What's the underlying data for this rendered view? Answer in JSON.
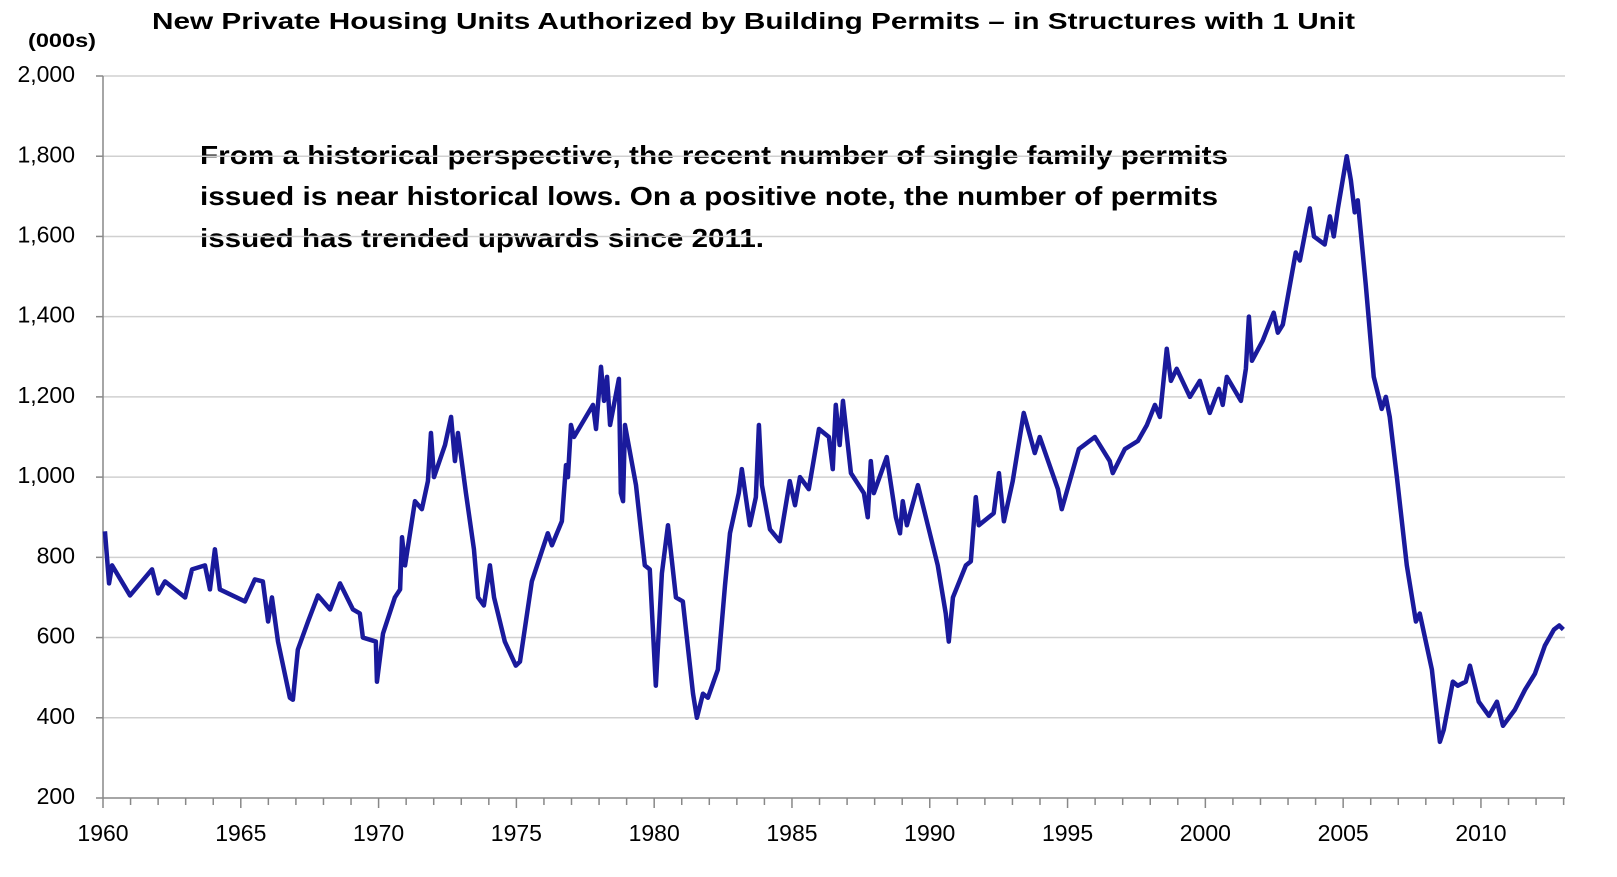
{
  "chart_data": {
    "type": "line",
    "title": "New Private Housing Units Authorized by Building Permits – in Structures with 1 Unit",
    "y_axis_label": "(000s)",
    "annotation": [
      "From a historical perspective, the recent number of single family permits",
      "issued is near historical lows. On a positive note, the number of permits",
      "issued has trended upwards since 2011."
    ],
    "xlim": [
      1960,
      2013.05
    ],
    "xticks": [
      1960,
      1965,
      1970,
      1975,
      1980,
      1985,
      1990,
      1995,
      2000,
      2005,
      2010
    ],
    "xminorticks": [
      1961,
      1962,
      1963,
      1964,
      1966,
      1967,
      1968,
      1969,
      1971,
      1972,
      1973,
      1974,
      1976,
      1977,
      1978,
      1979,
      1981,
      1982,
      1983,
      1984,
      1986,
      1987,
      1988,
      1989,
      1991,
      1992,
      1993,
      1994,
      1996,
      1997,
      1998,
      1999,
      2001,
      2002,
      2003,
      2004,
      2006,
      2007,
      2008,
      2009,
      2011,
      2012,
      2013
    ],
    "ylim": [
      200,
      2000
    ],
    "yticks": [
      200,
      400,
      600,
      800,
      {
        "value": 1000,
        "label": "1,000"
      },
      {
        "value": 1200,
        "label": "1,200"
      },
      {
        "value": 1400,
        "label": "1,400"
      },
      {
        "value": 1600,
        "label": "1,600"
      },
      {
        "value": 1800,
        "label": "1,800"
      },
      {
        "value": 2000,
        "label": "2,000"
      }
    ],
    "grid": true,
    "series": [
      {
        "color": "#1a1a9c",
        "x": [
          1960.07,
          1960.22,
          1960.33,
          1960.98,
          1961.78,
          1962.0,
          1962.25,
          1962.98,
          1963.23,
          1963.7,
          1963.88,
          1964.06,
          1964.24,
          1965.15,
          1965.51,
          1965.8,
          1965.99,
          1966.13,
          1966.35,
          1966.78,
          1966.89,
          1967.07,
          1967.44,
          1967.8,
          1968.24,
          1968.6,
          1969.07,
          1969.32,
          1969.43,
          1969.9,
          1969.94,
          1970.16,
          1970.59,
          1970.78,
          1970.85,
          1970.96,
          1971.32,
          1971.57,
          1971.79,
          1971.9,
          1972.01,
          1972.41,
          1972.63,
          1972.77,
          1972.88,
          1973.17,
          1973.46,
          1973.61,
          1973.82,
          1974.04,
          1974.19,
          1974.58,
          1974.98,
          1975.13,
          1975.56,
          1976.14,
          1976.29,
          1976.65,
          1976.8,
          1976.87,
          1976.98,
          1977.09,
          1977.78,
          1977.89,
          1978.07,
          1978.18,
          1978.29,
          1978.4,
          1978.72,
          1978.79,
          1978.87,
          1978.94,
          1979.34,
          1979.66,
          1979.84,
          1980.06,
          1980.28,
          1980.5,
          1980.79,
          1981.04,
          1981.41,
          1981.55,
          1981.77,
          1981.95,
          1982.31,
          1982.57,
          1982.75,
          1983.07,
          1983.18,
          1983.47,
          1983.69,
          1983.8,
          1983.91,
          1984.2,
          1984.56,
          1984.92,
          1985.11,
          1985.29,
          1985.61,
          1985.98,
          1986.34,
          1986.48,
          1986.59,
          1986.73,
          1986.85,
          1987.14,
          1987.61,
          1987.75,
          1987.86,
          1987.97,
          1988.44,
          1988.77,
          1988.92,
          1989.02,
          1989.17,
          1989.57,
          1989.93,
          1990.29,
          1990.58,
          1990.69,
          1990.84,
          1991.31,
          1991.49,
          1991.67,
          1991.78,
          1992.32,
          1992.51,
          1992.69,
          1993.01,
          1993.41,
          1993.81,
          1993.99,
          1994.65,
          1994.79,
          1995.41,
          1995.99,
          1996.53,
          1996.64,
          1997.08,
          1997.55,
          1997.88,
          1998.17,
          1998.35,
          1998.6,
          1998.75,
          1998.96,
          1999.44,
          1999.8,
          2000.16,
          2000.49,
          2000.63,
          2000.78,
          2001.29,
          2001.47,
          2001.58,
          2001.69,
          2002.08,
          2002.48,
          2002.63,
          2002.81,
          2003.28,
          2003.43,
          2003.79,
          2003.94,
          2004.33,
          2004.52,
          2004.66,
          2004.81,
          2005.13,
          2005.28,
          2005.42,
          2005.53,
          2005.82,
          2006.11,
          2006.4,
          2006.55,
          2006.69,
          2006.95,
          2007.31,
          2007.64,
          2007.78,
          2008.22,
          2008.51,
          2008.65,
          2008.98,
          2009.16,
          2009.45,
          2009.6,
          2009.92,
          2010.29,
          2010.58,
          2010.8,
          2011.23,
          2011.6,
          2011.96,
          2012.32,
          2012.65,
          2012.84,
          2012.99
        ],
        "values": [
          865,
          735,
          780,
          705,
          770,
          710,
          740,
          700,
          770,
          780,
          720,
          820,
          720,
          690,
          745,
          740,
          640,
          700,
          590,
          450,
          445,
          570,
          640,
          705,
          670,
          735,
          670,
          660,
          600,
          590,
          490,
          610,
          700,
          720,
          850,
          780,
          940,
          920,
          990,
          1110,
          1000,
          1080,
          1150,
          1040,
          1110,
          960,
          820,
          700,
          680,
          780,
          700,
          590,
          530,
          540,
          740,
          860,
          830,
          890,
          1030,
          1000,
          1130,
          1100,
          1180,
          1120,
          1275,
          1190,
          1250,
          1130,
          1245,
          960,
          940,
          1130,
          980,
          780,
          770,
          480,
          760,
          880,
          700,
          690,
          460,
          400,
          460,
          450,
          520,
          730,
          860,
          960,
          1020,
          880,
          950,
          1130,
          980,
          870,
          840,
          990,
          930,
          1000,
          970,
          1120,
          1100,
          1020,
          1180,
          1080,
          1190,
          1010,
          960,
          900,
          1040,
          960,
          1050,
          900,
          860,
          940,
          880,
          980,
          880,
          780,
          660,
          590,
          700,
          780,
          790,
          950,
          880,
          910,
          1010,
          890,
          990,
          1160,
          1060,
          1100,
          970,
          920,
          1070,
          1100,
          1040,
          1010,
          1070,
          1090,
          1130,
          1180,
          1150,
          1320,
          1240,
          1270,
          1200,
          1240,
          1160,
          1220,
          1180,
          1250,
          1190,
          1270,
          1400,
          1290,
          1340,
          1410,
          1360,
          1380,
          1560,
          1540,
          1670,
          1600,
          1580,
          1650,
          1600,
          1670,
          1800,
          1740,
          1660,
          1690,
          1480,
          1250,
          1170,
          1200,
          1150,
          1000,
          780,
          640,
          660,
          520,
          340,
          370,
          490,
          480,
          490,
          530,
          440,
          405,
          440,
          380,
          420,
          470,
          510,
          580,
          620,
          630,
          620
        ]
      }
    ]
  }
}
